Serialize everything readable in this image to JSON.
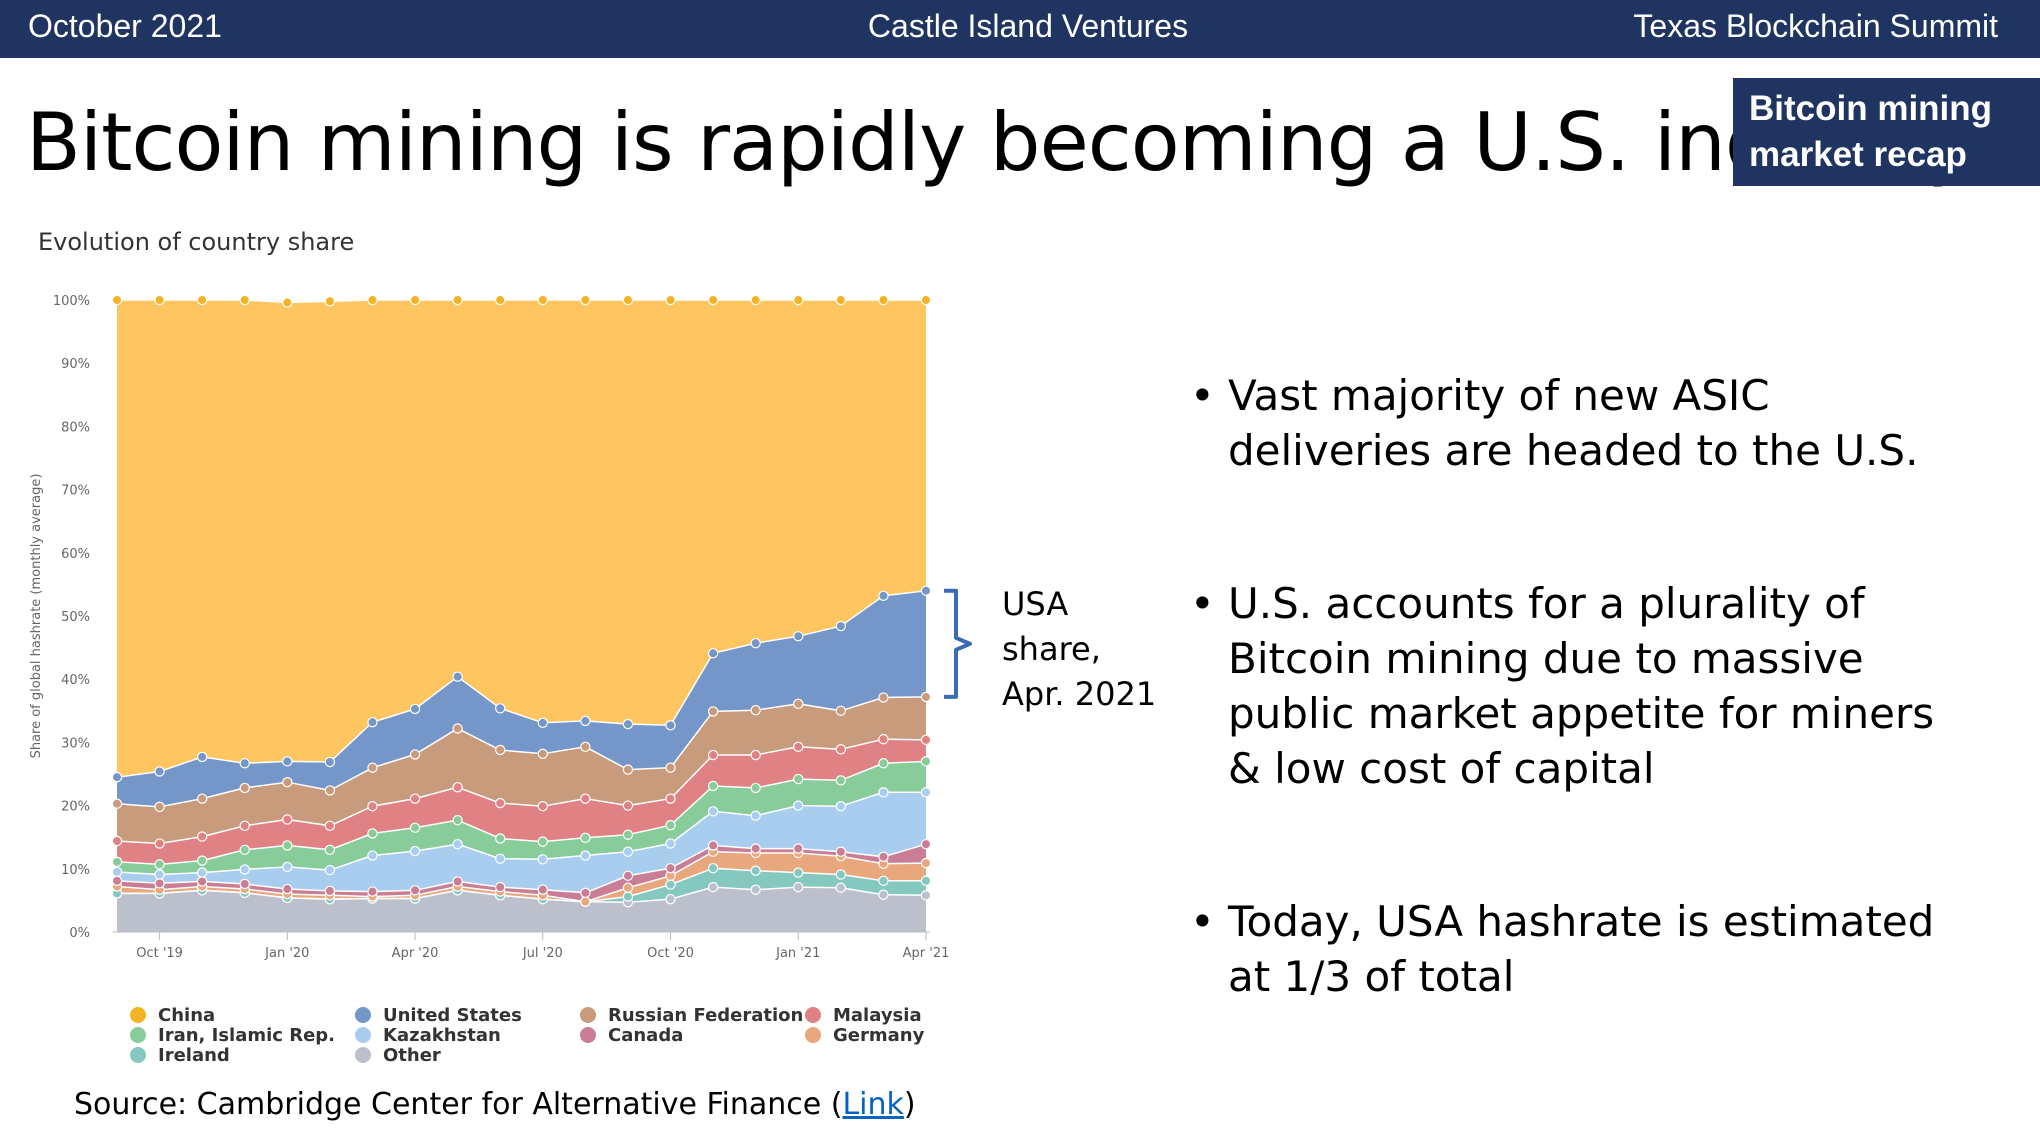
{
  "header": {
    "left": "October 2021",
    "center": "Castle Island Ventures",
    "right": "Texas Blockchain Summit"
  },
  "title": "Bitcoin mining is rapidly becoming a U.S. industry",
  "section_tag": {
    "line1": "Bitcoin mining",
    "line2": "market recap"
  },
  "chart_subtitle": "Evolution of country share",
  "annotation": {
    "line1": "USA",
    "line2": "share,",
    "line3": "Apr. 2021"
  },
  "bullets": [
    {
      "lines": [
        "Vast majority of new ASIC",
        "deliveries are headed to the U.S."
      ]
    },
    {
      "lines": [
        "U.S. accounts for a plurality of",
        "Bitcoin mining due to massive",
        "public market appetite for miners",
        "& low cost of capital"
      ]
    },
    {
      "lines": [
        "Today, USA hashrate is estimated",
        "at 1/3 of total"
      ]
    }
  ],
  "source": {
    "prefix": "Source: Cambridge Center for Alternative Finance (",
    "link": "Link",
    "suffix": ")"
  },
  "colors": {
    "bar": "#1f3461",
    "link": "#0563c1"
  },
  "chart_data": {
    "type": "area",
    "stacked": true,
    "title": "Evolution of country share",
    "ylabel": "Share of global hashrate (monthly average)",
    "xlabel": "",
    "ylim": [
      0,
      100
    ],
    "yticks": [
      "0%",
      "10%",
      "20%",
      "30%",
      "40%",
      "50%",
      "60%",
      "70%",
      "80%",
      "90%",
      "100%"
    ],
    "x_months": [
      "Sep '19",
      "Oct '19",
      "Nov '19",
      "Dec '19",
      "Jan '20",
      "Feb '20",
      "Mar '20",
      "Apr '20",
      "May '20",
      "Jun '20",
      "Jul '20",
      "Aug '20",
      "Sep '20",
      "Oct '20",
      "Nov '20",
      "Dec '20",
      "Jan '21",
      "Feb '21",
      "Mar '21",
      "Apr '21"
    ],
    "xtick_labels": [
      {
        "month_index": 1,
        "label": "Oct '19"
      },
      {
        "month_index": 4,
        "label": "Jan '20"
      },
      {
        "month_index": 7,
        "label": "Apr '20"
      },
      {
        "month_index": 10,
        "label": "Jul '20"
      },
      {
        "month_index": 13,
        "label": "Oct '20"
      },
      {
        "month_index": 16,
        "label": "Jan '21"
      },
      {
        "month_index": 19,
        "label": "Apr '21"
      }
    ],
    "series": [
      {
        "name": "Other",
        "color": "#bcc0cc",
        "values": [
          6.1,
          6.1,
          6.6,
          6.2,
          5.4,
          5.2,
          5.3,
          5.3,
          6.6,
          5.8,
          5.2,
          4.8,
          4.7,
          5.2,
          7.1,
          6.7,
          7.1,
          7.0,
          5.9,
          5.8
        ]
      },
      {
        "name": "Ireland",
        "color": "#85c8c0",
        "values": [
          0.0,
          0.0,
          0.0,
          0.0,
          0.0,
          0.0,
          0.0,
          0.0,
          0.0,
          0.0,
          0.0,
          0.0,
          0.9,
          2.3,
          3.0,
          3.0,
          2.3,
          2.1,
          2.2,
          2.3
        ]
      },
      {
        "name": "Germany",
        "color": "#e8a77c",
        "values": [
          1.1,
          0.6,
          0.6,
          0.6,
          0.6,
          0.6,
          0.3,
          0.5,
          0.6,
          0.6,
          0.6,
          0.0,
          1.4,
          1.4,
          2.6,
          2.8,
          3.1,
          2.9,
          2.7,
          2.8
        ]
      },
      {
        "name": "Canada",
        "color": "#c97e96",
        "values": [
          0.9,
          1.0,
          0.8,
          0.8,
          0.8,
          0.7,
          0.8,
          0.8,
          0.8,
          0.7,
          0.9,
          1.4,
          1.9,
          1.2,
          1.0,
          0.7,
          0.7,
          0.7,
          1.1,
          3.0
        ]
      },
      {
        "name": "Kazakhstan",
        "color": "#a9cdee",
        "values": [
          1.4,
          1.4,
          1.4,
          2.3,
          3.5,
          3.3,
          5.7,
          6.2,
          5.9,
          4.5,
          4.8,
          5.9,
          3.8,
          3.9,
          5.4,
          5.2,
          6.8,
          7.2,
          10.2,
          8.2
        ]
      },
      {
        "name": "Iran, Islamic Rep.",
        "color": "#88cc9a",
        "values": [
          1.6,
          1.6,
          1.9,
          3.1,
          3.4,
          3.2,
          3.5,
          3.7,
          3.8,
          3.2,
          2.8,
          2.8,
          2.7,
          2.9,
          4.0,
          4.4,
          4.2,
          4.1,
          4.6,
          4.9
        ]
      },
      {
        "name": "Malaysia",
        "color": "#e08183",
        "values": [
          3.3,
          3.3,
          3.8,
          3.8,
          4.1,
          3.8,
          4.3,
          4.6,
          5.2,
          5.6,
          5.6,
          6.2,
          4.6,
          4.2,
          4.9,
          5.2,
          5.1,
          4.9,
          3.8,
          3.4
        ]
      },
      {
        "name": "Russian Federation",
        "color": "#c79b7c",
        "values": [
          5.9,
          5.8,
          6.0,
          6.0,
          5.9,
          5.6,
          6.1,
          7.0,
          9.3,
          8.4,
          8.3,
          8.2,
          5.7,
          4.9,
          6.9,
          7.1,
          6.8,
          6.1,
          6.6,
          6.8
        ]
      },
      {
        "name": "United States",
        "color": "#7496c9",
        "values": [
          4.2,
          5.6,
          6.6,
          3.9,
          3.3,
          4.5,
          7.2,
          7.2,
          8.2,
          6.6,
          4.9,
          4.1,
          7.2,
          6.7,
          9.2,
          10.6,
          10.7,
          13.4,
          16.1,
          16.8
        ]
      },
      {
        "name": "China",
        "color": "#fec560",
        "values": [
          75.5,
          74.6,
          72.3,
          73.3,
          72.6,
          72.9,
          66.8,
          64.7,
          59.6,
          64.6,
          66.9,
          66.6,
          67.1,
          67.3,
          55.9,
          54.3,
          53.2,
          51.6,
          46.8,
          46.0
        ]
      }
    ],
    "legend_order": [
      "China",
      "United States",
      "Russian Federation",
      "Malaysia",
      "Iran, Islamic Rep.",
      "Kazakhstan",
      "Canada",
      "Germany",
      "Ireland",
      "Other"
    ],
    "legend_position": "bottom",
    "annotation": "USA share, Apr. 2021"
  }
}
